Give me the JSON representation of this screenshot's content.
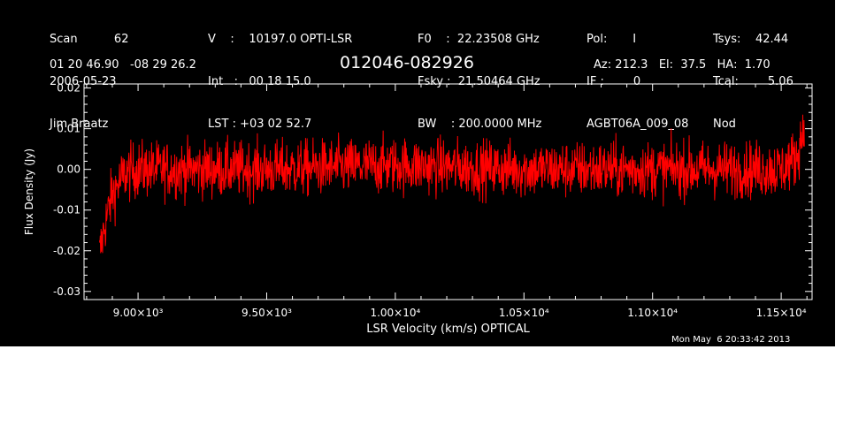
{
  "header": {
    "col1": [
      "Scan          62",
      "2006-05-23",
      "Jim Braatz"
    ],
    "col2": [
      "V    :    10197.0 OPTI-LSR",
      "Int   :   00 18 15.0",
      "LST : +03 02 52.7"
    ],
    "col3": [
      "F0    :  22.23508 GHz",
      "Fsky :  21.50464 GHz",
      "BW    : 200.0000 MHz"
    ],
    "col4": [
      "Pol:       I",
      "IF :        0",
      "AGBT06A_009_08"
    ],
    "col5": [
      "Tsys:    42.44",
      "Tcal:        5.06",
      "Nod"
    ],
    "coords": "01 20 46.90   -08 29 26.2",
    "source": "012046-082926",
    "azelha": "Az: 212.3   El:  37.5   HA:  1.70",
    "timestamp": "Mon May  6 20:33:42 2013"
  },
  "chart_data": {
    "type": "line",
    "title": "012046-082926",
    "xlabel": "LSR Velocity (km/s) OPTICAL",
    "ylabel": "Flux Density (Jy)",
    "xlim": [
      8790,
      11620
    ],
    "ylim": [
      -0.032,
      0.021
    ],
    "xticks": [
      9000,
      9500,
      10000,
      10500,
      11000,
      11500
    ],
    "xtick_labels": [
      "9.00×10³",
      "9.50×10³",
      "1.00×10⁴",
      "1.05×10⁴",
      "1.10×10⁴",
      "1.15×10⁴"
    ],
    "yticks": [
      -0.03,
      -0.02,
      -0.01,
      0.0,
      0.01,
      0.02
    ],
    "ytick_labels": [
      "-0.03",
      "-0.02",
      "-0.01",
      "0.00",
      "0.01",
      "0.02"
    ],
    "x_range": [
      8850,
      11590
    ],
    "n_points": 1800,
    "series": [
      {
        "color": "#ff0000",
        "envelope": [
          {
            "x": 8850,
            "y": -0.021
          },
          {
            "x": 8870,
            "y": -0.014
          },
          {
            "x": 8900,
            "y": -0.006
          },
          {
            "x": 8950,
            "y": -0.001
          },
          {
            "x": 9000,
            "y": 0.0
          },
          {
            "x": 9500,
            "y": 0.0
          },
          {
            "x": 10000,
            "y": 0.001
          },
          {
            "x": 10500,
            "y": 0.0
          },
          {
            "x": 11000,
            "y": 0.0
          },
          {
            "x": 11500,
            "y": 0.0
          },
          {
            "x": 11560,
            "y": 0.003
          },
          {
            "x": 11590,
            "y": 0.011
          }
        ],
        "noise_rms": 0.0035
      }
    ],
    "grid": false,
    "legend": "none"
  }
}
